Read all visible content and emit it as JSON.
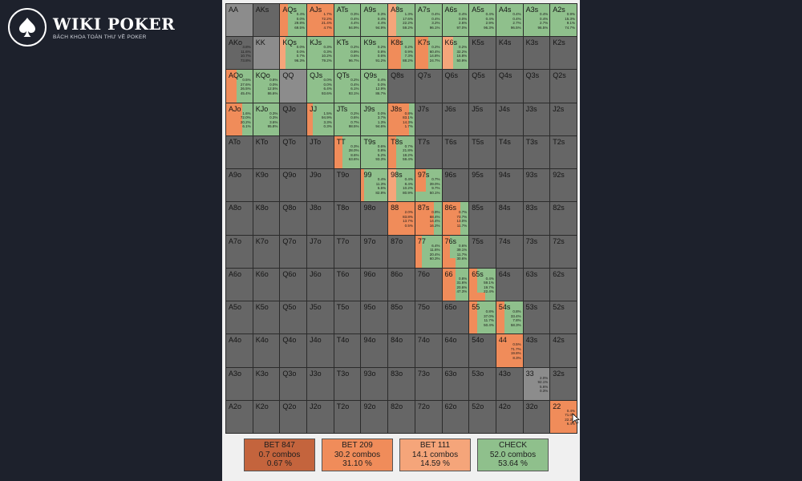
{
  "brand": {
    "title": "WIKI POKER",
    "subtitle": "BÁCH KHOA TOÀN THƯ VỀ POKER"
  },
  "colors": {
    "bet847": "#c4643d",
    "bet209": "#f08c5a",
    "bet111": "#f5a57a",
    "check": "#8fc08c",
    "empty": "#666666",
    "pair": "#8c8c8c"
  },
  "ranks": [
    "A",
    "K",
    "Q",
    "J",
    "T",
    "9",
    "8",
    "7",
    "6",
    "5",
    "4",
    "3",
    "2"
  ],
  "hands": {
    "AQs": {
      "freq": [
        [
          "bet209",
          0.3
        ],
        [
          "check",
          0.7
        ]
      ],
      "stats": [
        "0.4%",
        "0.0%",
        "29.8%",
        "69.5%"
      ]
    },
    "AJs": {
      "freq": [
        [
          "bet209",
          1.0
        ]
      ],
      "stats": [
        "1.7%",
        "72.2%",
        "21.4%",
        "4.7%"
      ]
    },
    "ATs": {
      "freq": [
        [
          "check",
          1.0
        ]
      ],
      "stats": [
        "0.3%",
        "0.4%",
        "4.4%",
        "94.9%"
      ]
    },
    "A9s": {
      "freq": [
        [
          "check",
          1.0
        ]
      ],
      "stats": [
        "0.3%",
        "0.4%",
        "4.4%",
        "94.9%"
      ]
    },
    "A8s": {
      "freq": [
        [
          "bet111",
          0.3
        ],
        [
          "check",
          0.7
        ]
      ],
      "stats": [
        "1.3%",
        "17.6%",
        "22.2%",
        "59.2%"
      ]
    },
    "A7s": {
      "freq": [
        [
          "check",
          1.0
        ]
      ],
      "stats": [
        "0.4%",
        "0.4%",
        "3.2%",
        "96.1%"
      ]
    },
    "A6s": {
      "freq": [
        [
          "check",
          1.0
        ]
      ],
      "stats": [
        "0.4%",
        "0.0%",
        "2.6%",
        "97.0%"
      ]
    },
    "A5s": {
      "freq": [
        [
          "check",
          1.0
        ]
      ],
      "stats": [
        "0.4%",
        "0.4%",
        "2.9%",
        "96.3%"
      ]
    },
    "A4s": {
      "freq": [
        [
          "check",
          1.0
        ]
      ],
      "stats": [
        "0.4%",
        "0.4%",
        "2.7%",
        "96.5%"
      ]
    },
    "A3s": {
      "freq": [
        [
          "check",
          1.0
        ]
      ],
      "stats": [
        "0.4%",
        "0.4%",
        "2.7%",
        "96.5%"
      ]
    },
    "A2s": {
      "freq": [
        [
          "check",
          1.0
        ]
      ],
      "stats": [
        "0.9%",
        "15.3%",
        "9.1%",
        "74.7%"
      ]
    },
    "KQs": {
      "freq": [
        [
          "bet111",
          0.2
        ],
        [
          "check",
          0.8
        ]
      ],
      "stats": [
        "0.0%",
        "0.0%",
        "0.7%",
        "96.3%"
      ]
    },
    "KJs": {
      "freq": [
        [
          "check",
          1.0
        ]
      ],
      "stats": [
        "0.3%",
        "0.3%",
        "10.2%",
        "79.2%"
      ]
    },
    "KTs": {
      "freq": [
        [
          "check",
          1.0
        ]
      ],
      "stats": [
        "0.2%",
        "0.9%",
        "0.6%",
        "96.7%"
      ]
    },
    "K9s": {
      "freq": [
        [
          "check",
          1.0
        ]
      ],
      "stats": [
        "0.2%",
        "0.8%",
        "0.6%",
        "91.2%"
      ]
    },
    "K8s": {
      "freq": [
        [
          "bet209",
          0.5
        ],
        [
          "check",
          0.5
        ]
      ],
      "stats": [
        "0.2%",
        "0.9%",
        "7.3%",
        "88.2%"
      ]
    },
    "K7s": {
      "freq": [
        [
          "bet209",
          0.5
        ],
        [
          "check",
          0.5
        ]
      ],
      "stats": [
        "0.2%",
        "60.4%",
        "14.8%",
        "24.7%"
      ]
    },
    "K6s": {
      "freq": [
        [
          "bet111",
          0.4
        ],
        [
          "check",
          0.6
        ]
      ],
      "stats": [
        "0.2%",
        "32.2%",
        "16.8%",
        "50.9%"
      ]
    },
    "AKo": {
      "freq": [],
      "stats": [
        "3.8%",
        "11.6%",
        "10.7%",
        "73.8%"
      ]
    },
    "AQo": {
      "freq": [
        [
          "bet209",
          0.4
        ],
        [
          "check",
          0.6
        ]
      ],
      "stats": [
        "0.5%",
        "27.6%",
        "26.5%",
        "45.4%"
      ]
    },
    "KQo": {
      "freq": [
        [
          "check",
          1.0
        ]
      ],
      "stats": [
        "0.8%",
        "0.0%",
        "12.5%",
        "86.6%"
      ]
    },
    "QJs": {
      "freq": [
        [
          "check",
          1.0
        ]
      ],
      "stats": [
        "0.0%",
        "0.0%",
        "6.4%",
        "93.6%"
      ]
    },
    "QTs": {
      "freq": [
        [
          "check",
          1.0
        ]
      ],
      "stats": [
        "0.2%",
        "0.4%",
        "6.1%",
        "93.1%"
      ]
    },
    "Q9s": {
      "freq": [
        [
          "check",
          1.0
        ]
      ],
      "stats": [
        "0.4%",
        "0.0%",
        "12.9%",
        "86.7%"
      ]
    },
    "AJo": {
      "freq": [
        [
          "bet209",
          0.6
        ],
        [
          "check",
          0.4
        ]
      ],
      "stats": [
        "1.6%",
        "72.0%",
        "20.2%",
        "6.1%"
      ]
    },
    "KJo": {
      "freq": [
        [
          "check",
          1.0
        ]
      ],
      "stats": [
        "0.3%",
        "0.3%",
        "3.6%",
        "95.8%"
      ]
    },
    "JJ": {
      "freq": [
        [
          "bet209",
          0.2
        ],
        [
          "check",
          0.8
        ]
      ],
      "stats": [
        "1.5%",
        "94.9%",
        "3.3%",
        "0.3%"
      ]
    },
    "JTs": {
      "freq": [
        [
          "check",
          1.0
        ]
      ],
      "stats": [
        "0.2%",
        "0.6%",
        "0.7%",
        "98.5%"
      ]
    },
    "J9s": {
      "freq": [
        [
          "check",
          1.0
        ]
      ],
      "stats": [
        "0.0%",
        "3.7%",
        "1.3%",
        "94.6%"
      ]
    },
    "J8s": {
      "freq": [
        [
          "bet209",
          0.8
        ],
        [
          "check",
          0.2
        ]
      ],
      "stats": [
        "0.8%",
        "83.1%",
        "14.3%",
        "1.7%"
      ]
    },
    "TT": {
      "freq": [
        [
          "bet209",
          0.3
        ],
        [
          "check",
          0.7
        ]
      ],
      "stats": [
        "0.3%",
        "28.0%",
        "8.6%",
        "63.6%"
      ]
    },
    "T9s": {
      "freq": [
        [
          "check",
          1.0
        ]
      ],
      "stats": [
        "0.6%",
        "0.8%",
        "5.2%",
        "93.3%"
      ]
    },
    "T8s": {
      "freq": [
        [
          "bet209",
          0.3
        ],
        [
          "check",
          0.7
        ]
      ],
      "stats": [
        "0.7%",
        "21.8%",
        "18.2%",
        "59.4%"
      ]
    },
    "99": {
      "freq": [
        [
          "bet209",
          0.1
        ],
        [
          "check",
          0.9
        ]
      ],
      "stats": [
        "0.4%",
        "11.3%",
        "5.5%",
        "82.8%"
      ]
    },
    "98s": {
      "freq": [
        [
          "bet111",
          0.3
        ],
        [
          "check",
          0.7
        ]
      ],
      "stats": [
        "0.4%",
        "8.4%",
        "10.2%",
        "80.9%"
      ]
    },
    "97s": {
      "freq": [
        [
          "bet209",
          0.4
        ],
        [
          "check",
          0.6
        ]
      ],
      "stats": [
        "0.7%",
        "39.0%",
        "9.7%",
        "50.1%"
      ],
      "bar": [
        [
          "check",
          0.5,
          0.3
        ]
      ]
    },
    "88": {
      "freq": [
        [
          "bet209",
          1.0
        ]
      ],
      "stats": [
        "2.0%",
        "83.8%",
        "13.7%",
        "0.5%"
      ]
    },
    "87s": {
      "freq": [
        [
          "bet209",
          0.7
        ],
        [
          "check",
          0.3
        ]
      ],
      "stats": [
        "0.9%",
        "68.4%",
        "14.4%",
        "16.2%"
      ]
    },
    "86s": {
      "freq": [
        [
          "bet209",
          0.7
        ],
        [
          "check",
          0.3
        ]
      ],
      "stats": [
        "0.7%",
        "73.7%",
        "13.0%",
        "11.7%"
      ]
    },
    "77": {
      "freq": [
        [
          "bet209",
          0.25
        ],
        [
          "check",
          0.75
        ]
      ],
      "stats": [
        "6.4%",
        "11.6%",
        "20.4%",
        "60.3%"
      ]
    },
    "76s": {
      "freq": [
        [
          "bet209",
          0.3
        ],
        [
          "check",
          0.7
        ]
      ],
      "stats": [
        "0.6%",
        "39.1%",
        "11.7%",
        "30.6%"
      ],
      "bar": [
        [
          "bet209",
          0.5,
          0.3
        ]
      ]
    },
    "66": {
      "freq": [
        [
          "bet209",
          0.5
        ],
        [
          "check",
          0.5
        ]
      ],
      "stats": [
        "0.8%",
        "31.6%",
        "20.6%",
        "47.3%"
      ]
    },
    "65s": {
      "freq": [
        [
          "bet209",
          0.3
        ],
        [
          "check",
          0.7
        ]
      ],
      "stats": [
        "0.4%",
        "59.1%",
        "19.7%",
        "22.4%"
      ],
      "bar": [
        [
          "bet209",
          0.6,
          0.25
        ]
      ]
    },
    "55": {
      "freq": [
        [
          "bet209",
          0.3
        ],
        [
          "check",
          0.7
        ]
      ],
      "stats": [
        "0.8%",
        "37.0%",
        "11.7%",
        "50.4%"
      ]
    },
    "54s": {
      "freq": [
        [
          "bet209",
          0.3
        ],
        [
          "check",
          0.7
        ]
      ],
      "stats": [
        "0.8%",
        "33.4%",
        "7.8%",
        "58.3%"
      ]
    },
    "44": {
      "freq": [
        [
          "bet209",
          1.0
        ]
      ],
      "stats": [
        "0.5%",
        "71.7%",
        "19.8%",
        "8.3%"
      ]
    },
    "33": {
      "freq": [],
      "stats": [
        "2.0%",
        "92.1%",
        "5.6%",
        "0.3%"
      ]
    },
    "22": {
      "freq": [
        [
          "bet209",
          1.0
        ]
      ],
      "stats": [
        "0.4%",
        "71.0%",
        "22.2%",
        "6.4%"
      ],
      "bar": [
        [
          "bet209",
          1.0,
          0.55
        ]
      ]
    }
  },
  "legend": [
    {
      "key": "bet847",
      "label": "BET 847",
      "combos": "0.7 combos",
      "percent": "0.67 %"
    },
    {
      "key": "bet209",
      "label": "BET 209",
      "combos": "30.2 combos",
      "percent": "31.10 %"
    },
    {
      "key": "bet111",
      "label": "BET 111",
      "combos": "14.1 combos",
      "percent": "14.59 %"
    },
    {
      "key": "check",
      "label": "CHECK",
      "combos": "52.0 combos",
      "percent": "53.64 %"
    }
  ]
}
